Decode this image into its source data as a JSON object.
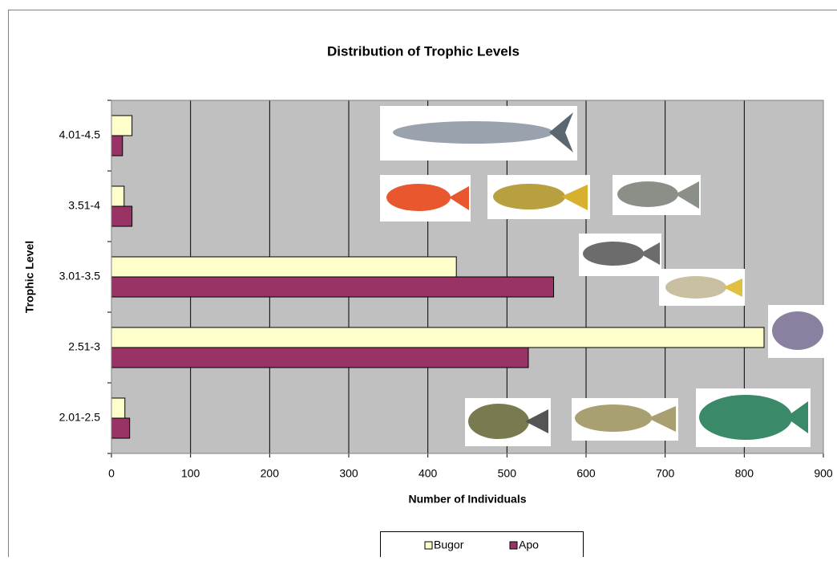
{
  "chart_data": {
    "type": "hbar",
    "title": "Distribution of Trophic Levels",
    "x_label": "Number of Individuals",
    "y_label": "Trophic Level",
    "categories": [
      "2.01-2.5",
      "2.51-3",
      "3.01-3.5",
      "3.51-4",
      "4.01-4.5"
    ],
    "series": [
      {
        "name": "Bugor",
        "color": "#ffffcc",
        "values": [
          17,
          825,
          436,
          16,
          26
        ]
      },
      {
        "name": "Apo",
        "color": "#993366",
        "values": [
          23,
          527,
          559,
          26,
          14
        ]
      }
    ],
    "xlim": [
      0,
      900
    ],
    "xticks": [
      0,
      100,
      200,
      300,
      400,
      500,
      600,
      700,
      800,
      900
    ],
    "grid": true,
    "plot_background": "#c0c0c0"
  }
}
